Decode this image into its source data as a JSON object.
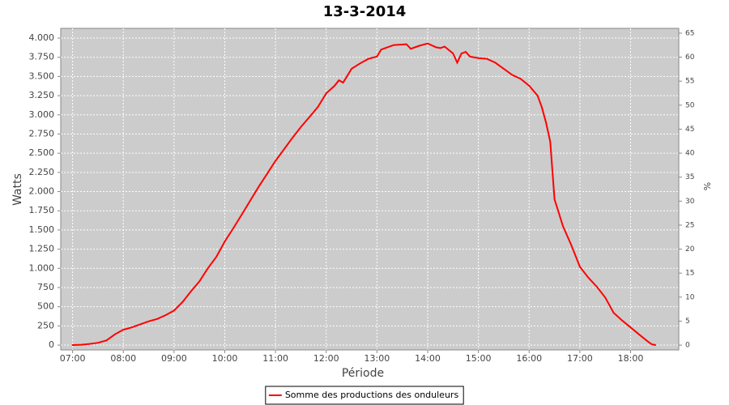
{
  "chart_data": {
    "type": "line",
    "title": "13-3-2014",
    "x_label": "Période",
    "y_label": "Watts",
    "y2_label": "%",
    "x": [
      "06:59",
      "07:10",
      "07:20",
      "07:30",
      "07:40",
      "07:50",
      "08:00",
      "08:10",
      "08:20",
      "08:30",
      "08:40",
      "08:50",
      "09:00",
      "09:10",
      "09:20",
      "09:30",
      "09:40",
      "09:50",
      "10:00",
      "10:10",
      "10:20",
      "10:30",
      "10:40",
      "10:50",
      "11:00",
      "11:10",
      "11:20",
      "11:30",
      "11:40",
      "11:50",
      "12:00",
      "12:10",
      "12:15",
      "12:20",
      "12:30",
      "12:40",
      "12:50",
      "13:00",
      "13:05",
      "13:20",
      "13:35",
      "13:40",
      "13:50",
      "14:00",
      "14:10",
      "14:15",
      "14:20",
      "14:30",
      "14:35",
      "14:40",
      "14:45",
      "14:50",
      "15:00",
      "15:10",
      "15:20",
      "15:30",
      "15:40",
      "15:50",
      "16:00",
      "16:10",
      "16:15",
      "16:20",
      "16:25",
      "16:30",
      "16:40",
      "16:50",
      "17:00",
      "17:10",
      "17:20",
      "17:30",
      "17:40",
      "17:50",
      "18:00",
      "18:10",
      "18:20",
      "18:25",
      "18:30"
    ],
    "series": [
      {
        "name": "Somme des productions des onduleurs",
        "color": "#ff0000",
        "values": [
          0,
          5,
          15,
          30,
          60,
          140,
          200,
          230,
          270,
          310,
          340,
          390,
          450,
          560,
          700,
          830,
          1000,
          1150,
          1350,
          1520,
          1700,
          1880,
          2060,
          2230,
          2400,
          2550,
          2700,
          2840,
          2970,
          3100,
          3280,
          3380,
          3450,
          3420,
          3600,
          3670,
          3730,
          3760,
          3850,
          3910,
          3920,
          3860,
          3900,
          3930,
          3880,
          3870,
          3890,
          3800,
          3680,
          3800,
          3820,
          3760,
          3740,
          3730,
          3680,
          3600,
          3520,
          3470,
          3380,
          3250,
          3100,
          2900,
          2650,
          1900,
          1550,
          1300,
          1020,
          880,
          760,
          620,
          420,
          320,
          230,
          140,
          50,
          10,
          0
        ]
      }
    ],
    "xlim": [
      "06:46",
      "18:57"
    ],
    "xticks": [
      "07:00",
      "08:00",
      "09:00",
      "10:00",
      "11:00",
      "12:00",
      "13:00",
      "14:00",
      "15:00",
      "16:00",
      "17:00",
      "18:00"
    ],
    "ylim": [
      -63,
      4127
    ],
    "yticks": [
      0,
      250,
      500,
      750,
      {
        "value": 1000,
        "label": "1.000"
      },
      {
        "value": 1250,
        "label": "1.250"
      },
      {
        "value": 1500,
        "label": "1.500"
      },
      {
        "value": 1750,
        "label": "1.750"
      },
      {
        "value": 2000,
        "label": "2.000"
      },
      {
        "value": 2250,
        "label": "2.250"
      },
      {
        "value": 2500,
        "label": "2.500"
      },
      {
        "value": 2750,
        "label": "2.750"
      },
      {
        "value": 3000,
        "label": "3.000"
      },
      {
        "value": 3250,
        "label": "3.250"
      },
      {
        "value": 3500,
        "label": "3.500"
      },
      {
        "value": 3750,
        "label": "3.750"
      },
      {
        "value": 4000,
        "label": "4.000"
      }
    ],
    "y2lim": [
      -1,
      66
    ],
    "y2ticks": [
      0,
      5,
      10,
      15,
      20,
      25,
      30,
      35,
      40,
      45,
      50,
      55,
      60,
      65
    ],
    "grid": true,
    "plot_background": "#cccccc",
    "legend": "bottom"
  }
}
